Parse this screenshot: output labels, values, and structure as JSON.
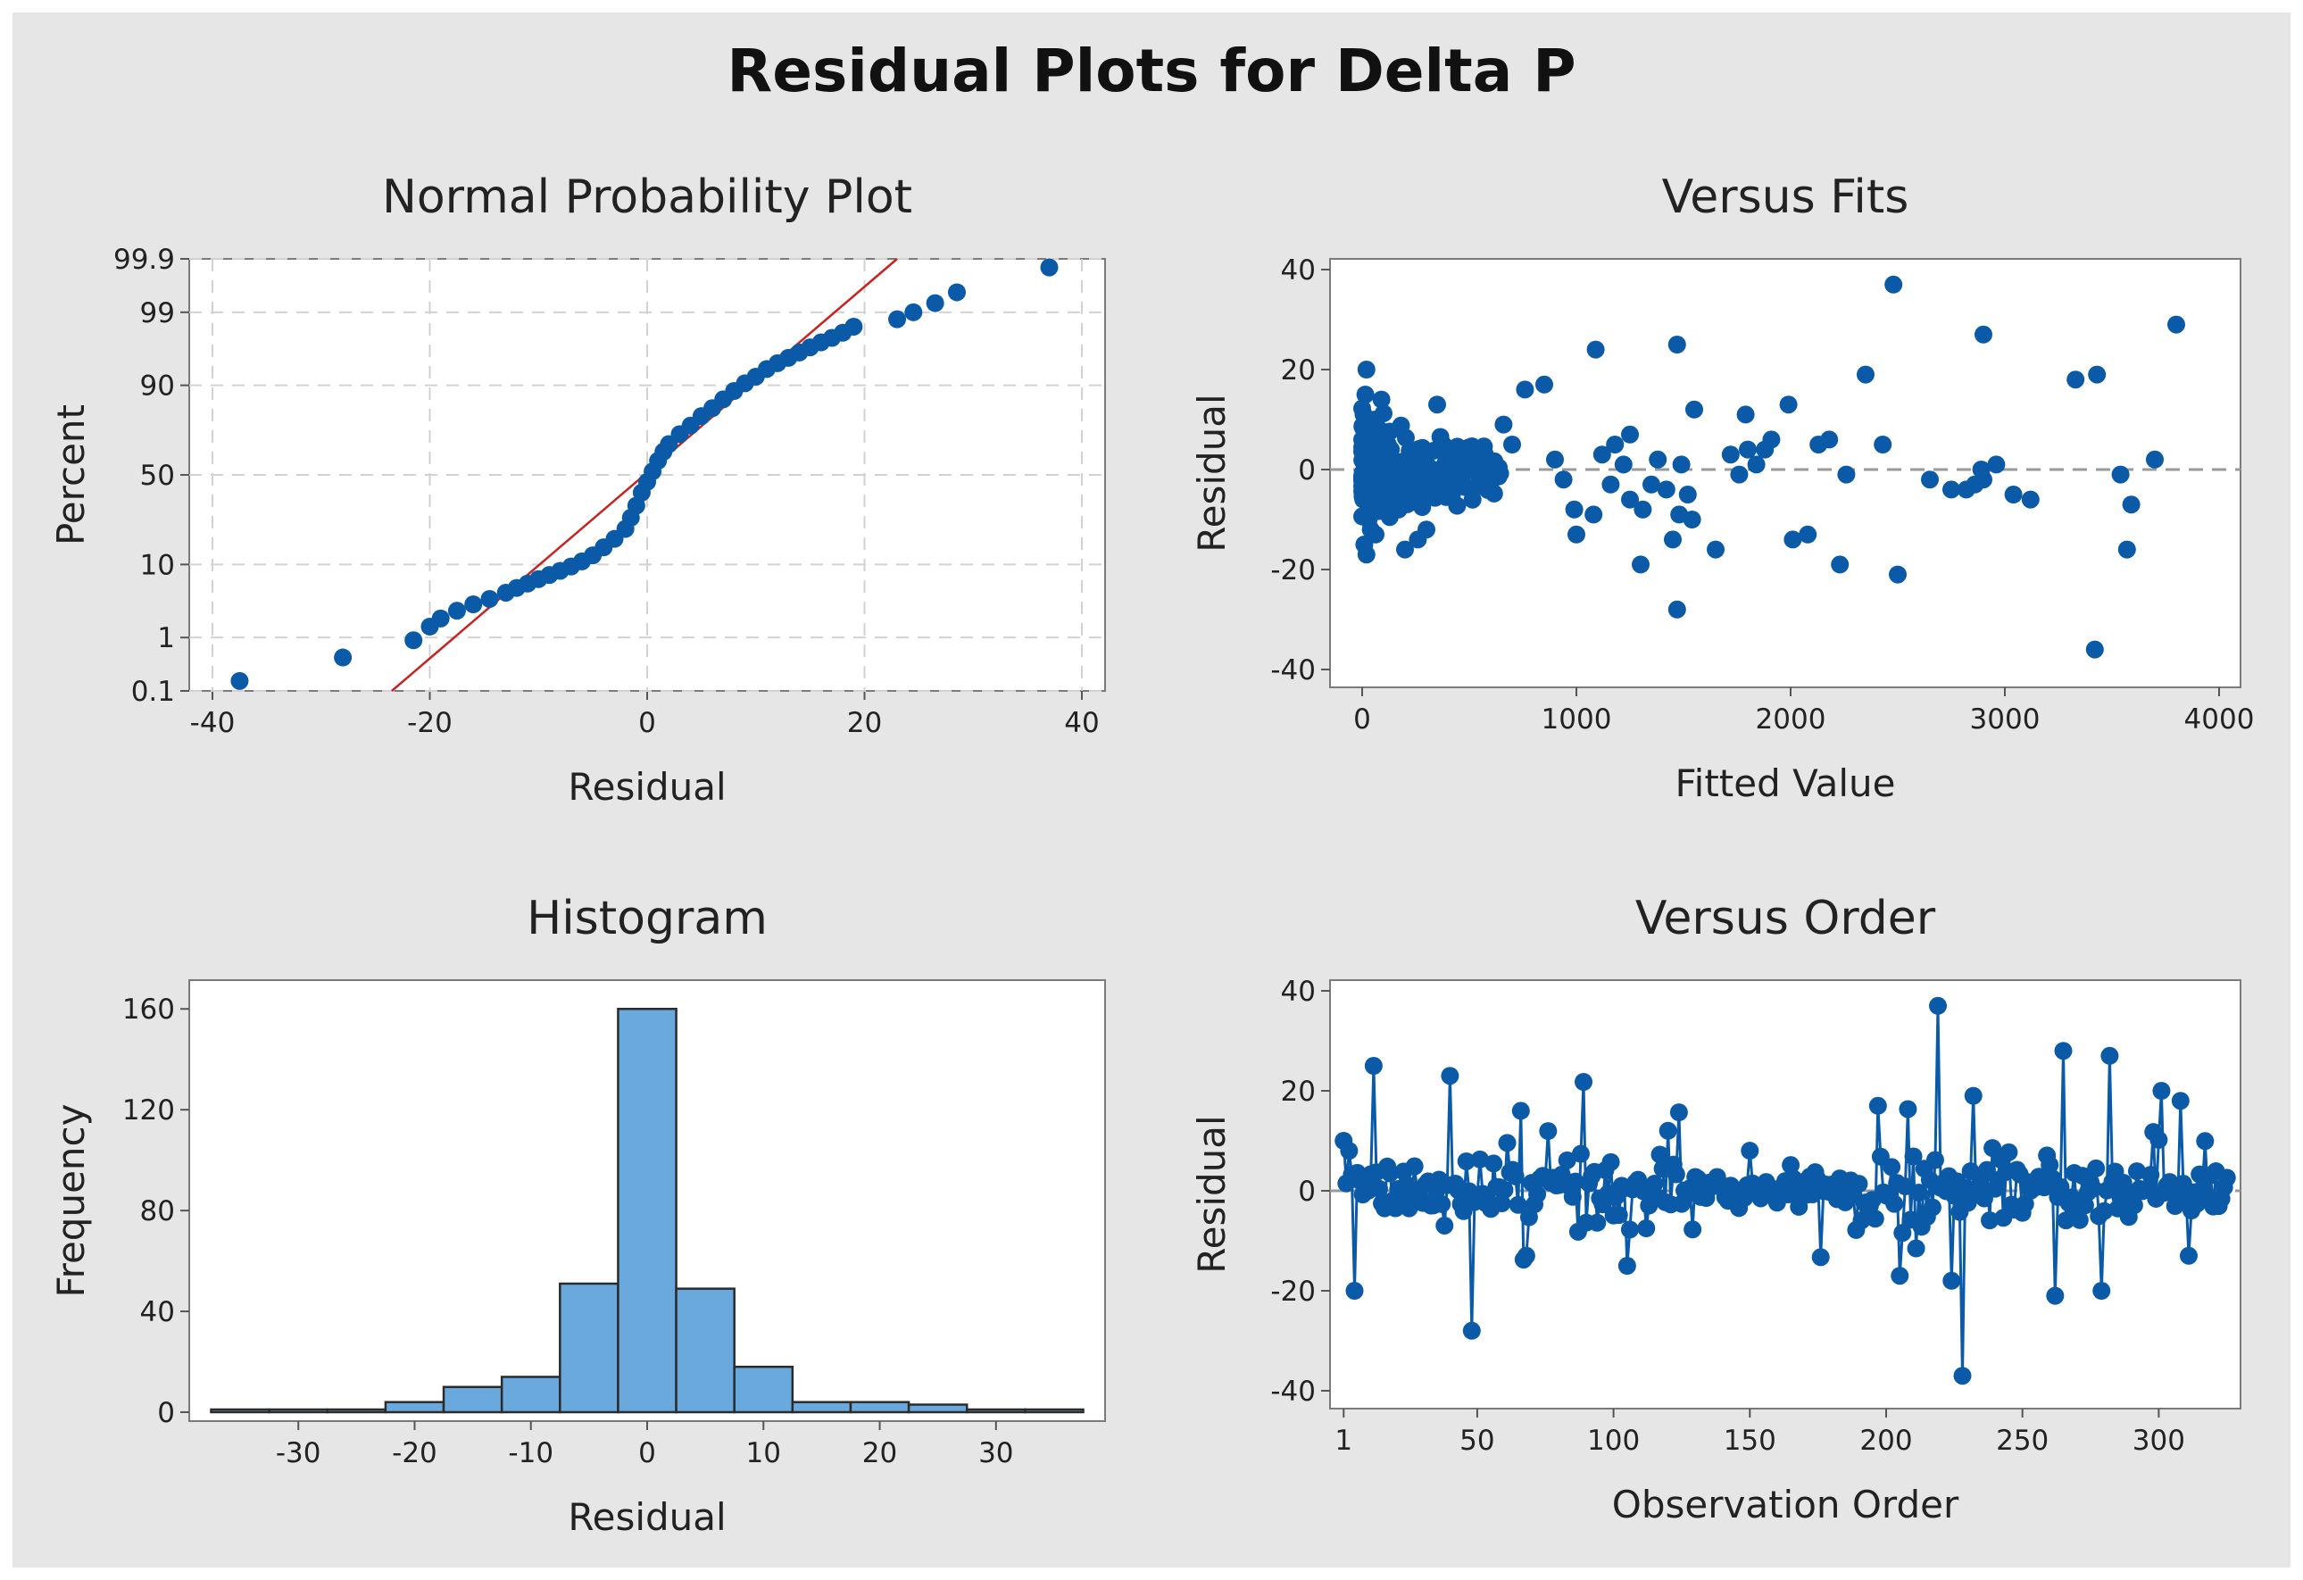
{
  "figure": {
    "title": "Residual Plots for Delta P",
    "colors": {
      "points": "#0a5aa8",
      "bars": "#6aa9de",
      "bar_edge": "#2b2b2b",
      "fit_line": "#c8231f",
      "zero_line": "#9a9a9a",
      "background": "#e6e6e6"
    }
  },
  "chart_data": [
    {
      "id": "normal",
      "type": "scatter",
      "title": "Normal Probability Plot",
      "xlabel": "Residual",
      "ylabel": "Percent",
      "xlim": [
        -40,
        40
      ],
      "ylim": [
        0.1,
        99.9
      ],
      "x_ticks": [
        -40,
        -20,
        0,
        20,
        40
      ],
      "x_tick_labels": [
        "-40",
        "-20",
        "0",
        "20",
        "40"
      ],
      "y_ticks": [
        0.1,
        1,
        10,
        50,
        90,
        99,
        99.9
      ],
      "y_tick_labels": [
        "0.1",
        "1",
        "10",
        "50",
        "90",
        "99",
        "99.9"
      ],
      "fit_line": {
        "x": [
          -23.5,
          23.0
        ],
        "y": [
          0.1,
          99.9
        ]
      },
      "points": [
        [
          -37.5,
          0.16
        ],
        [
          -28,
          0.45
        ],
        [
          -21.5,
          0.9
        ],
        [
          -20,
          1.5
        ],
        [
          -19,
          2.0
        ],
        [
          -17.5,
          2.6
        ],
        [
          -16,
          3.2
        ],
        [
          -14.5,
          3.8
        ],
        [
          -13,
          4.6
        ],
        [
          -12,
          5.3
        ],
        [
          -11,
          6.0
        ],
        [
          -10,
          6.8
        ],
        [
          -9,
          7.6
        ],
        [
          -8,
          8.5
        ],
        [
          -7,
          9.5
        ],
        [
          -6,
          10.8
        ],
        [
          -5,
          12.5
        ],
        [
          -4,
          15
        ],
        [
          -3,
          18
        ],
        [
          -2,
          22
        ],
        [
          -1.5,
          27
        ],
        [
          -1,
          33
        ],
        [
          -0.5,
          40
        ],
        [
          0,
          46
        ],
        [
          0.5,
          52
        ],
        [
          1,
          58
        ],
        [
          1.5,
          63
        ],
        [
          2,
          67
        ],
        [
          3,
          72
        ],
        [
          4,
          76
        ],
        [
          5,
          80
        ],
        [
          6,
          83
        ],
        [
          7,
          86
        ],
        [
          8,
          88.5
        ],
        [
          9,
          90.5
        ],
        [
          10,
          92
        ],
        [
          11,
          93.5
        ],
        [
          12,
          94.5
        ],
        [
          13,
          95.3
        ],
        [
          14,
          96
        ],
        [
          15,
          96.6
        ],
        [
          16,
          97.1
        ],
        [
          17,
          97.5
        ],
        [
          18,
          97.9
        ],
        [
          19,
          98.3
        ],
        [
          23,
          98.7
        ],
        [
          24.5,
          99.0
        ],
        [
          26.5,
          99.3
        ],
        [
          28.5,
          99.55
        ],
        [
          37,
          99.85
        ]
      ]
    },
    {
      "id": "fits",
      "type": "scatter",
      "title": "Versus Fits",
      "xlabel": "Fitted Value",
      "ylabel": "Residual",
      "xlim": [
        -150,
        4100
      ],
      "ylim": [
        -40,
        40
      ],
      "x_ticks": [
        0,
        1000,
        2000,
        3000,
        4000
      ],
      "x_tick_labels": [
        "0",
        "1000",
        "2000",
        "3000",
        "4000"
      ],
      "y_ticks": [
        -40,
        -20,
        0,
        20,
        40
      ],
      "y_tick_labels": [
        "-40",
        "-20",
        "0",
        "20",
        "40"
      ],
      "reference_line": 0,
      "points": [
        [
          1090,
          24
        ],
        [
          1470,
          25
        ],
        [
          2480,
          37
        ],
        [
          2900,
          27
        ],
        [
          3800,
          29
        ],
        [
          3430,
          19
        ],
        [
          3330,
          18
        ],
        [
          2350,
          19
        ],
        [
          1990,
          13
        ],
        [
          1550,
          12
        ],
        [
          1790,
          11
        ],
        [
          20,
          20
        ],
        [
          15,
          15
        ],
        [
          90,
          14
        ],
        [
          350,
          13
        ],
        [
          760,
          16
        ],
        [
          850,
          17
        ],
        [
          1250,
          7
        ],
        [
          1180,
          5
        ],
        [
          1380,
          2
        ],
        [
          1490,
          1
        ],
        [
          1520,
          -5
        ],
        [
          1480,
          -9
        ],
        [
          1450,
          -14
        ],
        [
          1540,
          -10
        ],
        [
          1650,
          -16
        ],
        [
          1300,
          -19
        ],
        [
          1470,
          -28
        ],
        [
          2080,
          -13
        ],
        [
          2010,
          -14
        ],
        [
          2230,
          -19
        ],
        [
          2500,
          -21
        ],
        [
          3420,
          -36
        ],
        [
          3570,
          -16
        ],
        [
          3590,
          -7
        ],
        [
          3540,
          -1
        ],
        [
          3700,
          2
        ],
        [
          2890,
          0
        ],
        [
          2960,
          1
        ],
        [
          3040,
          -5
        ],
        [
          3120,
          -6
        ],
        [
          2650,
          -2
        ],
        [
          2750,
          -4
        ],
        [
          2820,
          -4
        ],
        [
          2860,
          -3
        ],
        [
          2900,
          -2
        ],
        [
          2430,
          5
        ],
        [
          2260,
          -1
        ],
        [
          2130,
          5
        ],
        [
          2180,
          6
        ],
        [
          1720,
          3
        ],
        [
          1800,
          4
        ],
        [
          1880,
          4
        ],
        [
          1910,
          6
        ],
        [
          1760,
          -1
        ],
        [
          1840,
          1
        ],
        [
          1080,
          -9
        ],
        [
          1000,
          -13
        ],
        [
          990,
          -8
        ],
        [
          940,
          -2
        ],
        [
          900,
          2
        ],
        [
          700,
          5
        ],
        [
          660,
          9
        ],
        [
          600,
          1
        ],
        [
          560,
          -1
        ],
        [
          520,
          0
        ],
        [
          480,
          2
        ],
        [
          440,
          -2
        ],
        [
          400,
          1
        ],
        [
          360,
          -1
        ],
        [
          330,
          0
        ],
        [
          300,
          -12
        ],
        [
          260,
          -14
        ],
        [
          230,
          -3
        ],
        [
          200,
          -16
        ],
        [
          170,
          -8
        ],
        [
          140,
          -6
        ],
        [
          120,
          5
        ],
        [
          100,
          -5
        ],
        [
          80,
          8
        ],
        [
          60,
          10
        ],
        [
          40,
          -12
        ],
        [
          30,
          -10
        ],
        [
          20,
          -17
        ],
        [
          10,
          -15
        ],
        [
          5,
          -6
        ],
        [
          0,
          6
        ],
        [
          8,
          3
        ],
        [
          45,
          -2
        ],
        [
          70,
          -1
        ],
        [
          110,
          2
        ],
        [
          150,
          0
        ],
        [
          190,
          -3
        ],
        [
          230,
          3
        ],
        [
          270,
          4
        ],
        [
          310,
          -4
        ],
        [
          1120,
          3
        ],
        [
          1160,
          -3
        ],
        [
          1220,
          1
        ],
        [
          1250,
          -6
        ],
        [
          1350,
          -3
        ],
        [
          1420,
          -4
        ],
        [
          1310,
          -8
        ]
      ],
      "cluster": {
        "x_range": [
          0,
          650
        ],
        "y_spread": 8,
        "count": 180
      }
    },
    {
      "id": "hist",
      "type": "bar",
      "title": "Histogram",
      "xlabel": "Residual",
      "ylabel": "Frequency",
      "xlim": [
        -38,
        38
      ],
      "ylim": [
        0,
        170
      ],
      "x_ticks": [
        -30,
        -20,
        -10,
        0,
        10,
        20,
        30
      ],
      "x_tick_labels": [
        "-30",
        "-20",
        "-10",
        "0",
        "10",
        "20",
        "30"
      ],
      "y_ticks": [
        0,
        40,
        80,
        120,
        160
      ],
      "y_tick_labels": [
        "0",
        "40",
        "80",
        "120",
        "160"
      ],
      "bin_width": 5,
      "bin_centers": [
        -35,
        -30,
        -25,
        -20,
        -15,
        -10,
        -5,
        0,
        5,
        10,
        15,
        20,
        25,
        30,
        35
      ],
      "values": [
        1,
        1,
        0,
        4,
        10,
        14,
        51,
        160,
        49,
        18,
        4,
        4,
        3,
        1,
        1
      ]
    },
    {
      "id": "order",
      "type": "line",
      "title": "Versus Order",
      "xlabel": "Observation Order",
      "ylabel": "Residual",
      "xlim": [
        -4,
        330
      ],
      "ylim": [
        -40,
        40
      ],
      "x_ticks": [
        1,
        50,
        100,
        150,
        200,
        250,
        300
      ],
      "x_tick_labels": [
        "1",
        "50",
        "100",
        "150",
        "200",
        "250",
        "300"
      ],
      "y_ticks": [
        -40,
        -20,
        0,
        20,
        40
      ],
      "y_tick_labels": [
        "-40",
        "-20",
        "0",
        "20",
        "40"
      ],
      "reference_line": 0,
      "n_observations": 325,
      "key_points": [
        [
          1,
          10
        ],
        [
          3,
          8
        ],
        [
          5,
          -20
        ],
        [
          7,
          2
        ],
        [
          12,
          25
        ],
        [
          40,
          23
        ],
        [
          48,
          -28
        ],
        [
          66,
          16
        ],
        [
          68,
          -13
        ],
        [
          105,
          -15
        ],
        [
          120,
          12
        ],
        [
          197,
          17
        ],
        [
          205,
          -17
        ],
        [
          219,
          37
        ],
        [
          224,
          -18
        ],
        [
          228,
          -37
        ],
        [
          232,
          19
        ],
        [
          262,
          -21
        ],
        [
          265,
          28
        ],
        [
          279,
          -20
        ],
        [
          282,
          27
        ],
        [
          301,
          20
        ],
        [
          308,
          18
        ],
        [
          311,
          -13
        ]
      ]
    }
  ]
}
